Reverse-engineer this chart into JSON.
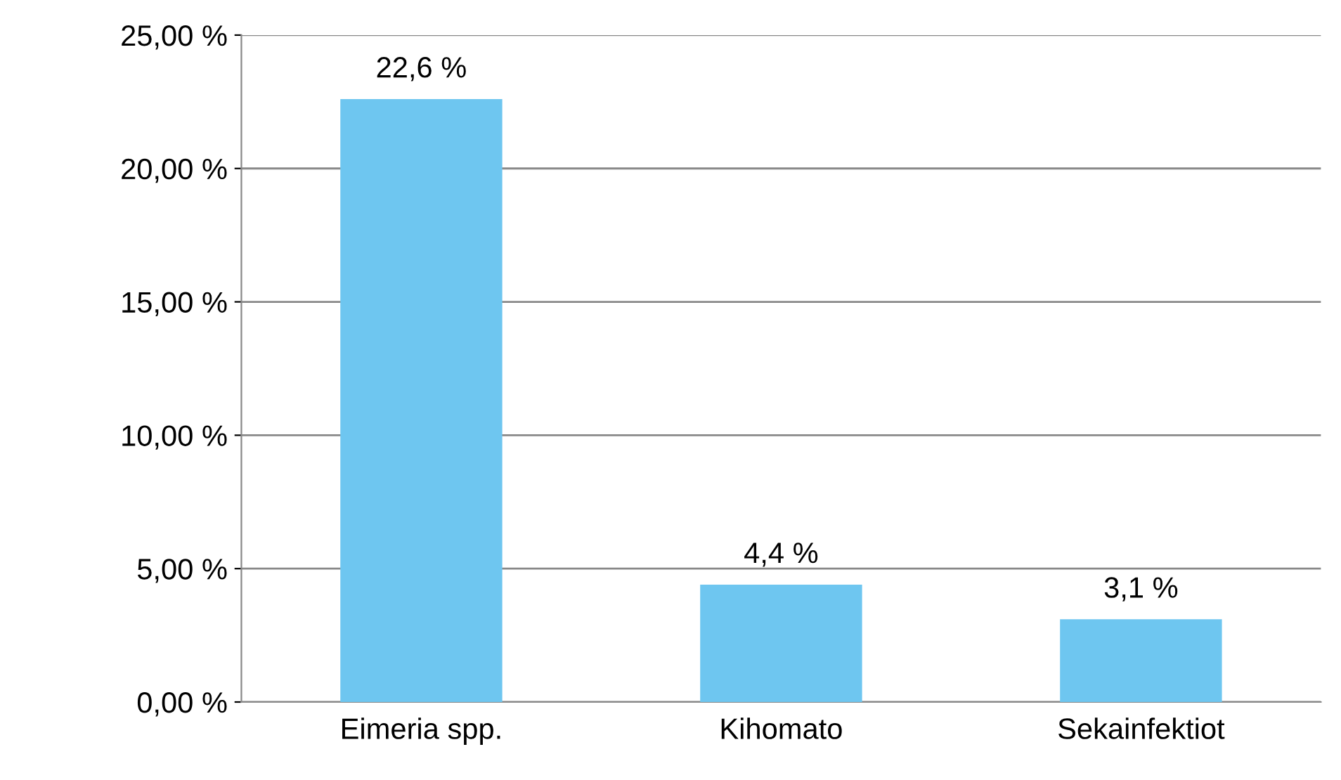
{
  "chart_data": {
    "type": "bar",
    "categories": [
      "Eimeria spp.",
      "Kihomato",
      "Sekainfektiot"
    ],
    "values": [
      22.6,
      4.4,
      3.1
    ],
    "value_labels": [
      "22,6 %",
      "4,4 %",
      "3,1 %"
    ],
    "color": "#6ec6f0",
    "ylim": [
      0,
      25
    ],
    "yticks": [
      {
        "value": 0,
        "label": "0,00 %"
      },
      {
        "value": 5,
        "label": "5,00 %"
      },
      {
        "value": 10,
        "label": "10,00 %"
      },
      {
        "value": 15,
        "label": "15,00 %"
      },
      {
        "value": 20,
        "label": "20,00 %"
      },
      {
        "value": 25,
        "label": "25,00 %"
      }
    ],
    "grid": "y"
  }
}
